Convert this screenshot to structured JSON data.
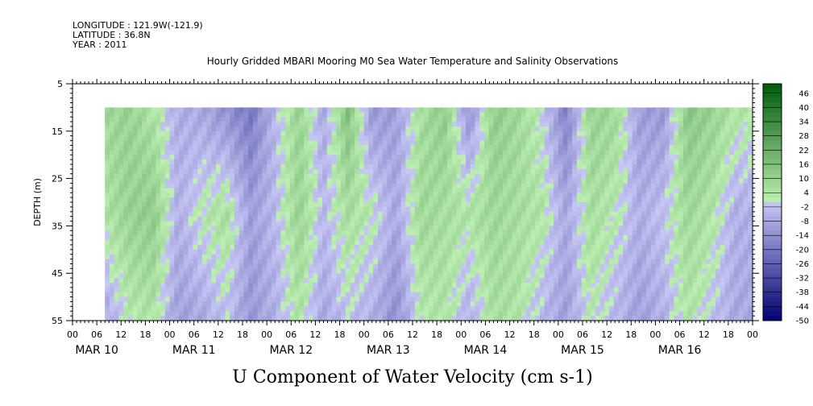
{
  "header": {
    "longitude": "LONGITUDE : 121.9W(-121.9)",
    "latitude": "LATITUDE : 36.8N",
    "year": "YEAR : 2011"
  },
  "chart_data": {
    "type": "heatmap",
    "title": "Hourly Gridded MBARI Mooring M0 Sea Water Temperature and Salinity Observations",
    "xlabel": "U Component of Water Velocity (cm s-1)",
    "ylabel": "DEPTH (m)",
    "x_hour_ticks": [
      "00",
      "06",
      "12",
      "18",
      "00",
      "06",
      "12",
      "18",
      "00",
      "06",
      "12",
      "18",
      "00",
      "06",
      "12",
      "18",
      "00",
      "06",
      "12",
      "18",
      "00",
      "06",
      "12",
      "18",
      "00",
      "06",
      "12",
      "18",
      "00"
    ],
    "x_day_labels": [
      "MAR 10",
      "MAR 11",
      "MAR 12",
      "MAR 13",
      "MAR 14",
      "MAR 15",
      "MAR 16"
    ],
    "ylim": [
      55,
      5
    ],
    "y_ticks": [
      5,
      15,
      25,
      35,
      45,
      55
    ],
    "data_depth_range": [
      10,
      55
    ],
    "data_start": "MAR 10 08:00",
    "colorbar": {
      "levels": [
        "46",
        "40",
        "34",
        "28",
        "22",
        "16",
        "10",
        "4",
        "-2",
        "-8",
        "-14",
        "-20",
        "-26",
        "-32",
        "-38",
        "-44",
        "-50"
      ],
      "min": -50,
      "max": 50
    },
    "u_velocity_profile": {
      "times_hours_from_mar10": [
        8,
        14,
        20,
        26,
        32,
        38,
        44,
        50,
        56,
        62,
        68,
        74,
        80,
        86,
        92,
        98,
        104,
        110,
        116,
        122,
        128,
        134,
        140,
        146,
        152,
        158,
        164
      ],
      "near_surface": [
        8,
        10,
        4,
        -6,
        -8,
        -14,
        -20,
        -4,
        10,
        -8,
        16,
        -12,
        -10,
        6,
        12,
        -14,
        12,
        8,
        0,
        -18,
        10,
        8,
        -10,
        -12,
        14,
        10,
        4
      ],
      "mid_depth": [
        4,
        10,
        12,
        -6,
        2,
        6,
        -10,
        -4,
        10,
        -4,
        6,
        2,
        -8,
        8,
        6,
        4,
        8,
        6,
        4,
        -8,
        6,
        2,
        -6,
        -2,
        8,
        4,
        -6
      ],
      "near_bottom": [
        -8,
        2,
        4,
        -10,
        -8,
        -2,
        -12,
        -6,
        4,
        -8,
        -2,
        -6,
        -14,
        2,
        4,
        -6,
        6,
        4,
        -4,
        -10,
        2,
        -4,
        -10,
        -6,
        4,
        -2,
        -8
      ]
    }
  }
}
